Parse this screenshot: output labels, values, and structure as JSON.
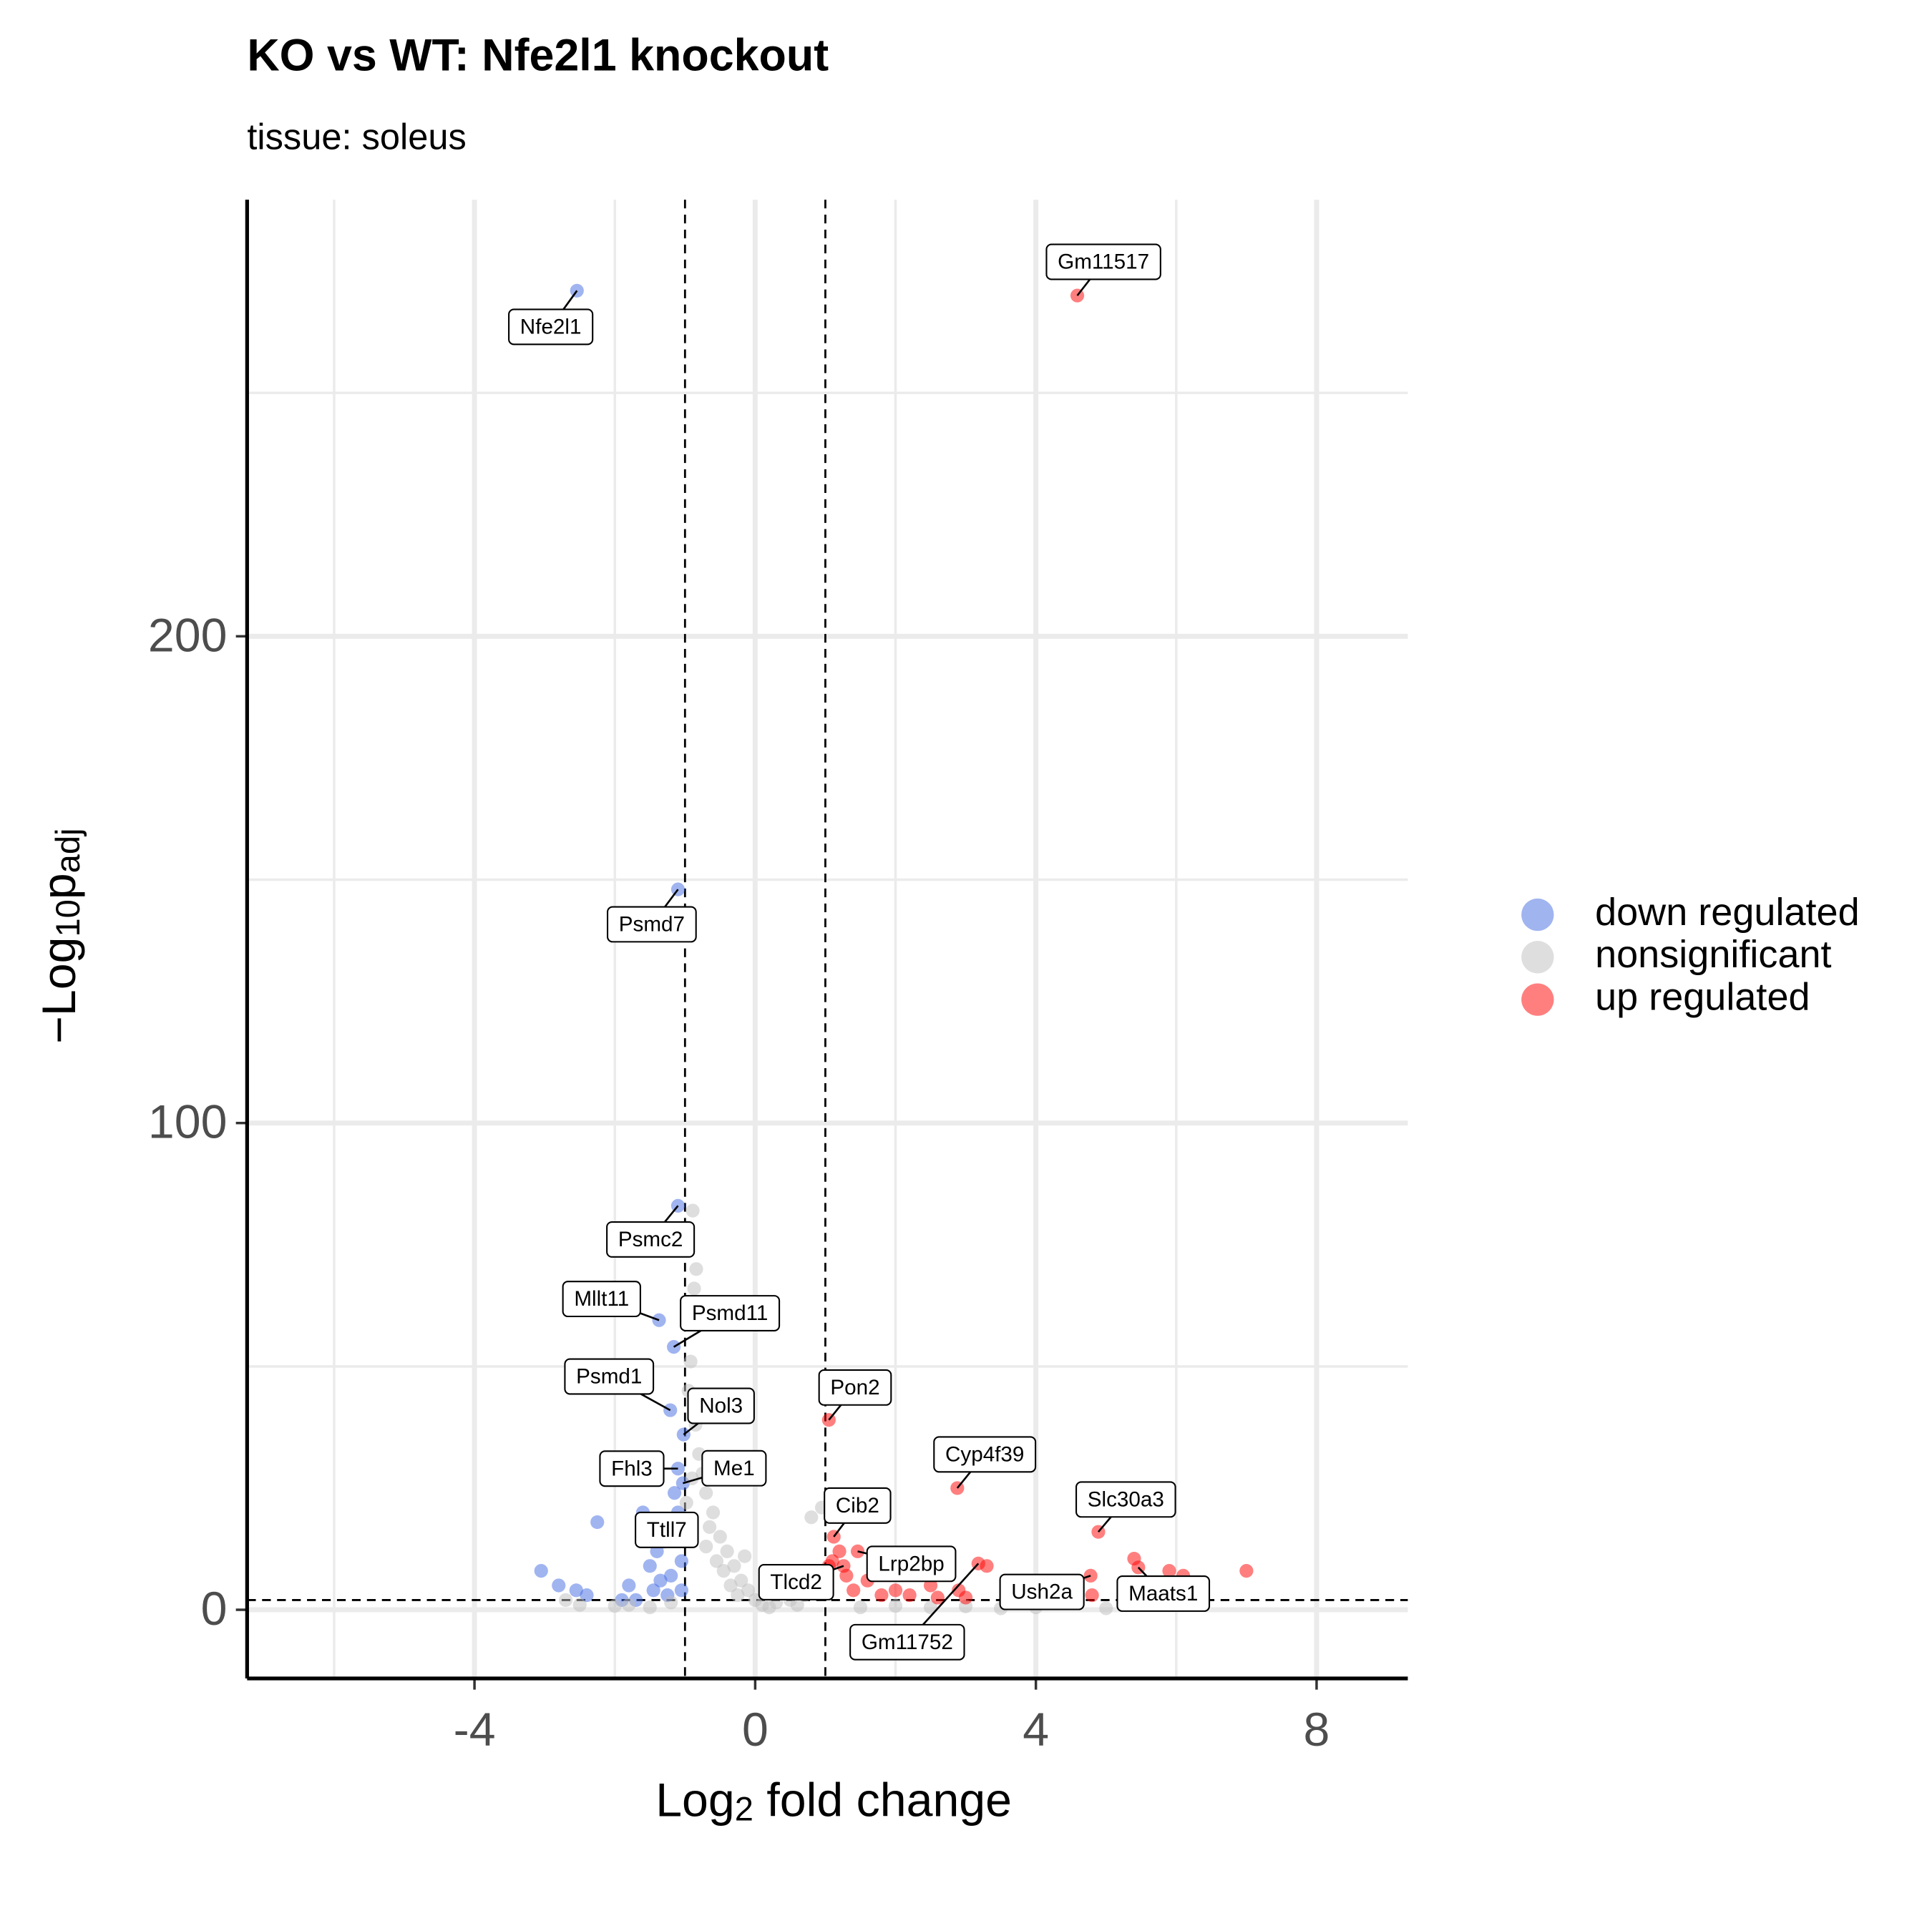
{
  "chart_data": {
    "type": "scatter",
    "title": "KO vs WT: Nfe2l1 knockout",
    "subtitle": "tissue: soleus",
    "xlabel": [
      "Log",
      "2",
      " fold change"
    ],
    "ylabel": [
      "−Log",
      "10",
      "p",
      "adj"
    ],
    "xlim": [
      -7.24,
      9.3
    ],
    "ylim": [
      -14.1,
      289.7
    ],
    "xticks": [
      -4,
      0,
      4,
      8
    ],
    "yticks": [
      0,
      100,
      200
    ],
    "grid": true,
    "legend": "right",
    "alpha": 0.5,
    "vlines": [
      -1,
      1
    ],
    "hline": 2,
    "series": [
      {
        "name": "down regulated",
        "color": "#4169e1",
        "x": [
          -2.54,
          -1.1,
          -1.1,
          -1.37,
          -1.16,
          -1.21,
          -1.02,
          -1.1,
          -1.03,
          -1.1,
          -3.05,
          -2.8,
          -2.55,
          -2.25,
          -1.6,
          -1.5,
          -1.4,
          -1.8,
          -1.3,
          -1.2,
          -1.25,
          -1.05,
          -1.15,
          -1.45,
          -2.4,
          -1.9,
          -1.7,
          -1.35,
          -1.1,
          -1.05
        ],
        "values": [
          271,
          148,
          83,
          59.5,
          54,
          41,
          36,
          29,
          26,
          20,
          8,
          5,
          4,
          18,
          20,
          9,
          12,
          5,
          14,
          7,
          3,
          10,
          24,
          4,
          3,
          2,
          2,
          6,
          15,
          4
        ],
        "labels": [
          "Nfe2l1",
          "Psmd7",
          "Psmc2",
          "Mllt11",
          "Psmd11",
          "Psmd1",
          "Nol3",
          "Fhl3",
          "Me1",
          "Ttll7",
          null,
          null,
          null,
          null,
          null,
          null,
          null,
          null,
          null,
          null,
          null,
          null,
          null,
          null,
          null,
          null,
          null,
          null,
          null,
          null
        ]
      },
      {
        "name": "nonsignificant",
        "color": "#bebebe",
        "x": [
          -0.89,
          -0.84,
          -0.87,
          -0.82,
          -0.92,
          -0.95,
          -0.85,
          -0.8,
          -0.75,
          -0.7,
          -0.6,
          -0.5,
          -0.4,
          -0.3,
          -0.2,
          -0.1,
          0,
          0.1,
          0.3,
          0.5,
          0.7,
          0.9,
          0.8,
          0.95,
          -0.65,
          -0.55,
          -0.45,
          -0.35,
          -0.25,
          0.2,
          0.6,
          1.5,
          2.0,
          2.5,
          3.0,
          3.5,
          4.0,
          5.0,
          -1.5,
          -2.0,
          -2.5,
          -2.7,
          -1.2,
          -1.8,
          -0.9,
          -0.98,
          -0.15,
          0.4,
          0.65,
          -0.7
        ],
        "values": [
          82,
          70,
          66,
          59,
          51,
          45,
          38,
          32,
          28,
          24,
          20,
          15,
          12,
          9,
          6,
          4,
          2,
          1,
          1.5,
          2,
          3,
          5,
          19,
          21,
          17,
          10,
          8,
          5,
          3,
          0.5,
          1,
          0.5,
          0.8,
          0.5,
          0.7,
          0.3,
          0.5,
          0.3,
          0.5,
          0.8,
          1.0,
          2,
          1.5,
          1.0,
          27,
          22,
          11,
          4,
          6,
          13
        ]
      },
      {
        "name": "up regulated",
        "color": "#ff0000",
        "x": [
          4.59,
          1.05,
          2.88,
          4.89,
          1.12,
          1.46,
          1.26,
          4.78,
          5.46,
          3.18,
          5.4,
          5.9,
          7.0,
          3.3,
          2.5,
          2.0,
          1.6,
          1.3,
          1.2,
          1.1,
          2.2,
          2.9,
          4.8,
          6.1,
          1.8,
          1.4,
          3.0,
          1.05,
          2.6
        ],
        "values": [
          270,
          39,
          25,
          16,
          15,
          12,
          9,
          7,
          8.7,
          9.5,
          10.5,
          8,
          8,
          9,
          5,
          4,
          6,
          7,
          12,
          10,
          3,
          4,
          3,
          7,
          3,
          4,
          2.5,
          9,
          2.5
        ],
        "labels": [
          "Gm11517",
          "Pon2",
          "Cyp4f39",
          "Slc30a3",
          "Cib2",
          "Lrp2bp",
          "Tlcd2",
          "Ush2a",
          "Maats1",
          "Gm11752",
          null,
          null,
          null,
          null,
          null,
          null,
          null,
          null,
          null,
          null,
          null,
          null,
          null,
          null,
          null,
          null,
          null,
          null,
          null
        ]
      }
    ]
  }
}
